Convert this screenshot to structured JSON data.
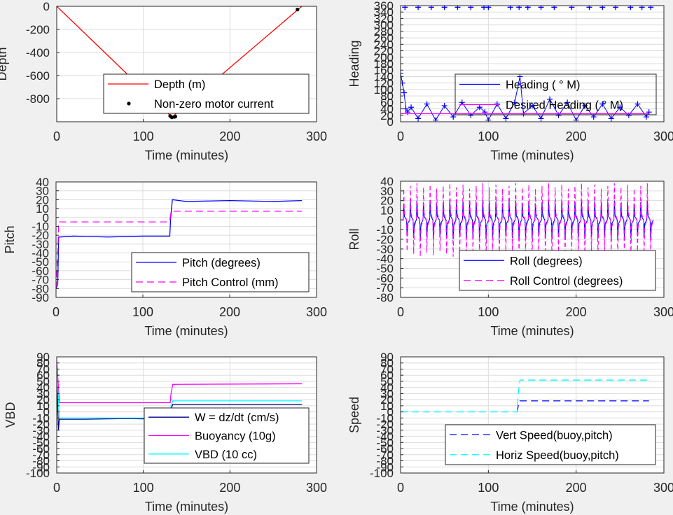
{
  "chart_data": [
    {
      "id": "depth",
      "type": "line",
      "xlabel": "Time (minutes)",
      "ylabel": "Depth",
      "xlim": [
        0,
        300
      ],
      "ylim": [
        -1000,
        0
      ],
      "xticks": [
        0,
        100,
        200,
        300
      ],
      "yticks": [
        0,
        -200,
        -400,
        -600,
        -800
      ],
      "grid": true,
      "legend": "lower-right",
      "series": [
        {
          "name": "Depth (m)",
          "style": "line",
          "color": "#ff0000",
          "x": [
            0,
            133,
            283
          ],
          "y": [
            0,
            -960,
            0
          ]
        },
        {
          "name": "Non-zero motor current",
          "style": "dot",
          "color": "#000000",
          "x": [
            131,
            133,
            136,
            137,
            278
          ],
          "y": [
            -950,
            -962,
            -958,
            -955,
            -28
          ]
        }
      ]
    },
    {
      "id": "heading",
      "type": "line",
      "xlabel": "Time (minutes)",
      "ylabel": "Heading",
      "xlim": [
        0,
        300
      ],
      "ylim": [
        0,
        360
      ],
      "xticks": [
        0,
        100,
        200,
        300
      ],
      "yticks": [
        0,
        20,
        40,
        60,
        80,
        100,
        120,
        140,
        160,
        180,
        200,
        220,
        240,
        260,
        280,
        300,
        320,
        340,
        360
      ],
      "grid": true,
      "legend": "center-right",
      "series": [
        {
          "name": "Heading ( ° M)",
          "style": "line+plus",
          "color": "#0000ff",
          "x": [
            0,
            2,
            4,
            6,
            8,
            12,
            20,
            30,
            40,
            50,
            60,
            70,
            80,
            90,
            96,
            100,
            110,
            120,
            130,
            136,
            140,
            150,
            160,
            170,
            180,
            190,
            200,
            210,
            220,
            230,
            240,
            250,
            260,
            270,
            280,
            283
          ],
          "y": [
            150,
            120,
            90,
            40,
            30,
            45,
            10,
            55,
            5,
            50,
            15,
            60,
            20,
            45,
            30,
            5,
            55,
            10,
            60,
            140,
            25,
            50,
            10,
            70,
            20,
            60,
            5,
            50,
            15,
            55,
            10,
            45,
            20,
            55,
            15,
            30
          ]
        },
        {
          "name": "Desired Heading ( ° M)",
          "style": "line",
          "color": "#ff00ff",
          "x": [
            0,
            283
          ],
          "y": [
            25,
            25
          ]
        }
      ],
      "outliers": {
        "x": [
          5,
          20,
          35,
          50,
          65,
          80,
          95,
          100,
          125,
          135,
          145,
          160,
          175,
          195,
          215,
          230,
          245,
          262,
          275,
          285
        ],
        "y": 355
      }
    },
    {
      "id": "pitch",
      "type": "line",
      "xlabel": "Time (minutes)",
      "ylabel": "Pitch",
      "xlim": [
        0,
        300
      ],
      "ylim": [
        -90,
        40
      ],
      "xticks": [
        0,
        100,
        200,
        300
      ],
      "yticks": [
        40,
        30,
        20,
        10,
        0,
        -10,
        -20,
        -30,
        -40,
        -50,
        -60,
        -70,
        -80,
        -90
      ],
      "grid": true,
      "legend": "lower-right",
      "series": [
        {
          "name": "Pitch (degrees)",
          "style": "line",
          "color": "#0000ff",
          "x": [
            0,
            2,
            3,
            5,
            20,
            60,
            100,
            131,
            132,
            134,
            150,
            200,
            250,
            283
          ],
          "y": [
            -80,
            -75,
            -22,
            -22,
            -21,
            -22,
            -21,
            -21,
            0,
            20,
            18,
            19,
            18,
            19
          ]
        },
        {
          "name": "Pitch Control (mm)",
          "style": "dashed",
          "color": "#ff00ff",
          "x": [
            0,
            2,
            3,
            5,
            131,
            132,
            134,
            283
          ],
          "y": [
            -80,
            -40,
            -5,
            -5,
            -5,
            5,
            7,
            7
          ]
        }
      ]
    },
    {
      "id": "roll",
      "type": "line",
      "xlabel": "Time (minutes)",
      "ylabel": "Roll",
      "xlim": [
        0,
        300
      ],
      "ylim": [
        -80,
        40
      ],
      "xticks": [
        0,
        100,
        200,
        300
      ],
      "yticks": [
        40,
        30,
        20,
        10,
        0,
        -10,
        -20,
        -30,
        -40,
        -50,
        -60,
        -70,
        -80
      ],
      "grid": true,
      "legend": "lower-right",
      "series": [
        {
          "name": "Roll (degrees)",
          "style": "line",
          "color": "#0000ff",
          "x_start": 3,
          "x_end": 282,
          "period": 7.5,
          "amplitude": 20
        },
        {
          "name": "Roll Control (degrees)",
          "style": "dashed",
          "color": "#ff00ff",
          "x_start": 3,
          "x_end": 282,
          "period": 7.5,
          "amplitude": 38
        }
      ]
    },
    {
      "id": "vbd",
      "type": "line",
      "xlabel": "Time (minutes)",
      "ylabel": "VBD",
      "xlim": [
        0,
        300
      ],
      "ylim": [
        -100,
        90
      ],
      "xticks": [
        0,
        100,
        200,
        300
      ],
      "yticks": [
        90,
        80,
        70,
        60,
        50,
        40,
        30,
        20,
        10,
        0,
        -10,
        -20,
        -30,
        -40,
        -50,
        -60,
        -70,
        -80,
        -90,
        -100
      ],
      "grid": true,
      "legend": "lower-right",
      "series": [
        {
          "name": "W = dz/dt (cm/s)",
          "style": "line",
          "color": "#00008b",
          "x": [
            0,
            2,
            3,
            5,
            30,
            80,
            131,
            132,
            134,
            200,
            283
          ],
          "y": [
            60,
            -30,
            -12,
            -12,
            -12,
            -11,
            -12,
            5,
            12,
            12,
            12
          ]
        },
        {
          "name": "Buoyancy (10g)",
          "style": "line",
          "color": "#ff00ff",
          "x": [
            0,
            2,
            3,
            131,
            132,
            134,
            283
          ],
          "y": [
            85,
            40,
            15,
            15,
            30,
            45,
            46
          ]
        },
        {
          "name": "VBD (10 cc)",
          "style": "line",
          "color": "#00ffff",
          "x": [
            0,
            2,
            3,
            5,
            131,
            132,
            134,
            283
          ],
          "y": [
            70,
            20,
            -10,
            -10,
            -10,
            10,
            18,
            18
          ]
        }
      ]
    },
    {
      "id": "speed",
      "type": "line",
      "xlabel": "Time (minutes)",
      "ylabel": "Speed",
      "xlim": [
        0,
        300
      ],
      "ylim": [
        -100,
        90
      ],
      "xticks": [
        0,
        100,
        200,
        300
      ],
      "yticks": [
        90,
        80,
        70,
        60,
        50,
        40,
        30,
        20,
        10,
        0,
        -10,
        -20,
        -30,
        -40,
        -50,
        -60,
        -70,
        -80,
        -90,
        -100
      ],
      "grid": true,
      "legend": "lower-right",
      "series": [
        {
          "name": "Vert Speed(buoy,pitch)",
          "style": "dashed",
          "color": "#0000ff",
          "x": [
            133,
            134,
            136,
            283
          ],
          "y": [
            0,
            10,
            18,
            18
          ]
        },
        {
          "name": "Horiz Speed(buoy,pitch)",
          "style": "dashed",
          "color": "#00ffff",
          "x": [
            0,
            133,
            134,
            136,
            283
          ],
          "y": [
            0,
            0,
            30,
            52,
            52
          ]
        }
      ]
    }
  ]
}
